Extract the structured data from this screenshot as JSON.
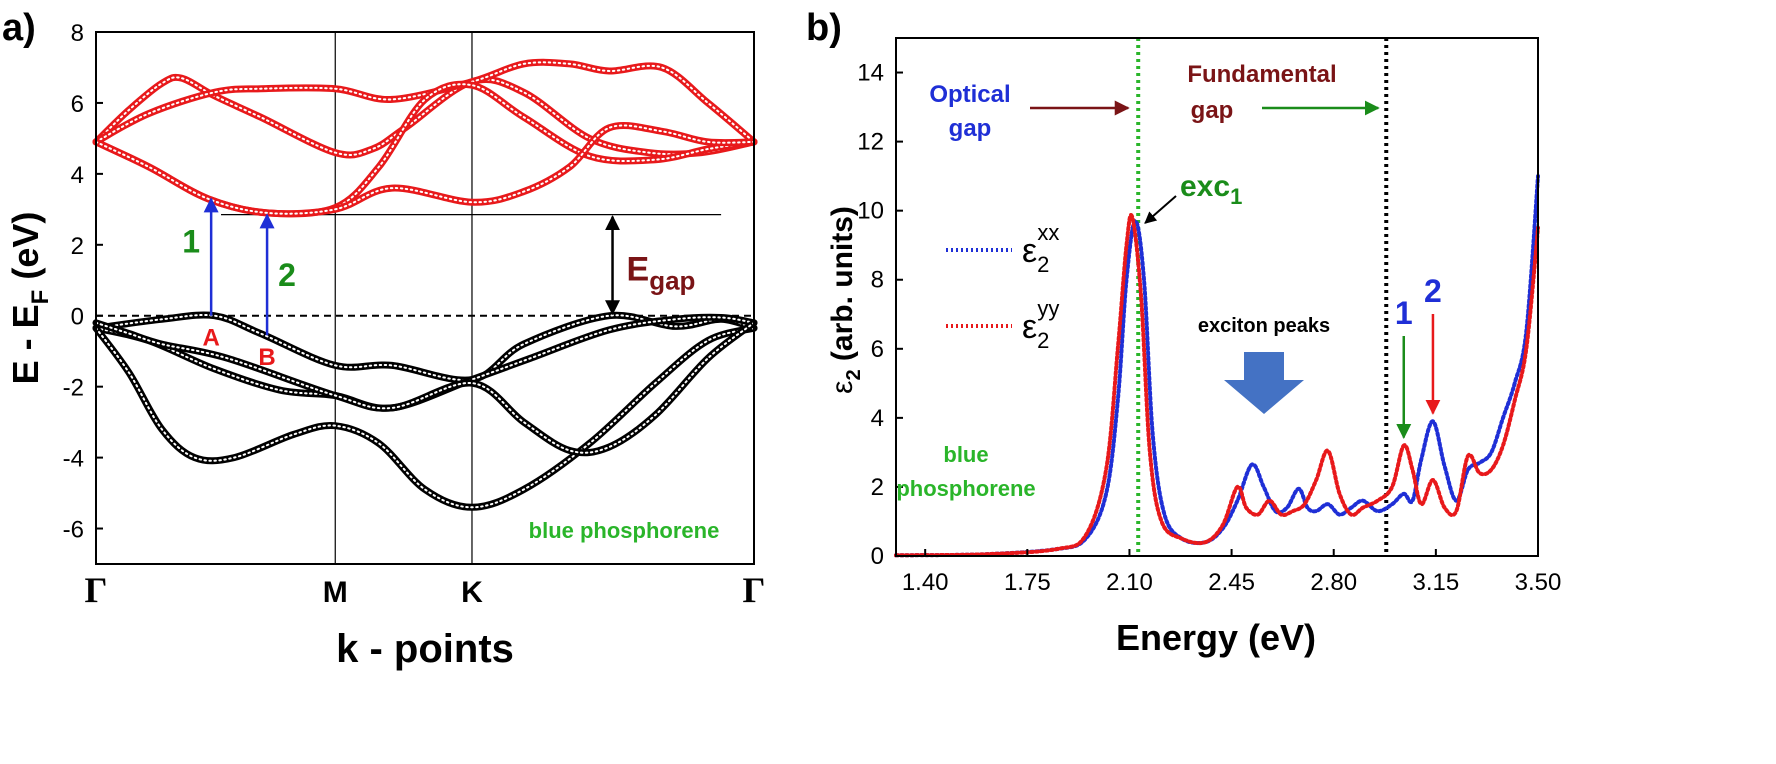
{
  "colors": {
    "conduction": "#e8191b",
    "valence": "#000000",
    "blue": "#1f2fd6",
    "green": "#1a8c1a",
    "darkred": "#7a1416",
    "annot_green": "#2ab52a",
    "arrow_fill": "#4472c4"
  },
  "chart_data": [
    {
      "panel_label": "a)",
      "type": "line",
      "title": "",
      "xlabel": "k - points",
      "ylabel": "E - E",
      "ylabel_sub": "F",
      "ylabel_unit": " (eV)",
      "ylim": [
        -7,
        8
      ],
      "yticks": [
        "8",
        "6",
        "4",
        "2",
        "0",
        "-2",
        "-4",
        "-6"
      ],
      "kpoints": [
        {
          "label": "Γ",
          "pos": 0
        },
        {
          "label": "M",
          "pos": 0.3636
        },
        {
          "label": "K",
          "pos": 0.5714
        },
        {
          "label": "Γ",
          "pos": 1.0
        }
      ],
      "series": [
        {
          "name": "conduction-band-1",
          "band": "conduction",
          "x": [
            0,
            0.05,
            0.1,
            0.13,
            0.18,
            0.25,
            0.3636,
            0.42,
            0.47,
            0.5714,
            0.65,
            0.75,
            0.84,
            0.92,
            1.0
          ],
          "y": [
            4.9,
            5.8,
            6.55,
            6.7,
            6.2,
            5.6,
            4.6,
            4.7,
            5.3,
            6.6,
            6.3,
            5.0,
            4.6,
            4.6,
            4.9
          ]
        },
        {
          "name": "conduction-band-2",
          "band": "conduction",
          "x": [
            0,
            0.08,
            0.18,
            0.25,
            0.3636,
            0.45,
            0.5714,
            0.65,
            0.72,
            0.78,
            0.86,
            0.93,
            1.0
          ],
          "y": [
            4.9,
            5.7,
            6.3,
            6.4,
            6.4,
            6.1,
            6.6,
            7.1,
            7.1,
            6.9,
            7.0,
            6.0,
            4.9
          ]
        },
        {
          "name": "conduction-band-3",
          "band": "conduction",
          "x": [
            0,
            0.08,
            0.17,
            0.26,
            0.3636,
            0.43,
            0.5,
            0.5714,
            0.65,
            0.75,
            0.85,
            0.93,
            1.0
          ],
          "y": [
            4.9,
            4.2,
            3.3,
            2.9,
            3.05,
            4.2,
            6.1,
            6.5,
            5.6,
            4.5,
            4.4,
            4.7,
            4.9
          ]
        },
        {
          "name": "conduction-band-4",
          "band": "conduction",
          "x": [
            0,
            0.08,
            0.17,
            0.26,
            0.3636,
            0.45,
            0.5714,
            0.65,
            0.72,
            0.78,
            0.86,
            0.93,
            1.0
          ],
          "y": [
            4.9,
            4.2,
            3.3,
            2.9,
            3.0,
            3.6,
            3.2,
            3.5,
            4.2,
            5.3,
            5.2,
            4.9,
            4.9
          ]
        },
        {
          "name": "valence-band-1",
          "band": "valence",
          "x": [
            0,
            0.1,
            0.18,
            0.25,
            0.3636,
            0.45,
            0.5714,
            0.65,
            0.78,
            0.88,
            0.95,
            1.0
          ],
          "y": [
            -0.35,
            -0.1,
            0.0,
            -0.5,
            -1.4,
            -1.4,
            -1.8,
            -0.8,
            0.0,
            -0.3,
            -0.1,
            -0.35
          ]
        },
        {
          "name": "valence-band-2",
          "band": "valence",
          "x": [
            0,
            0.08,
            0.18,
            0.28,
            0.3636,
            0.45,
            0.5714,
            0.66,
            0.78,
            0.88,
            0.95,
            1.0
          ],
          "y": [
            -0.35,
            -0.7,
            -1.5,
            -2.1,
            -2.25,
            -2.6,
            -1.8,
            -1.2,
            -0.4,
            -0.1,
            -0.05,
            -0.2
          ]
        },
        {
          "name": "valence-band-3",
          "band": "valence",
          "x": [
            0,
            0.05,
            0.1,
            0.15,
            0.21,
            0.3,
            0.3636,
            0.43,
            0.5,
            0.5714,
            0.65,
            0.75,
            0.85,
            0.93,
            1.0
          ],
          "y": [
            -0.35,
            -1.6,
            -3.2,
            -4.0,
            -4.0,
            -3.35,
            -3.1,
            -3.6,
            -4.9,
            -5.4,
            -4.9,
            -3.6,
            -1.9,
            -0.7,
            -0.35
          ]
        },
        {
          "name": "valence-band-4",
          "band": "valence",
          "x": [
            0,
            0.05,
            0.1,
            0.2,
            0.3636,
            0.45,
            0.5714,
            0.65,
            0.72,
            0.78,
            0.85,
            0.93,
            1.0
          ],
          "y": [
            -0.2,
            -0.5,
            -0.8,
            -1.2,
            -2.25,
            -2.6,
            -1.9,
            -3.0,
            -3.8,
            -3.7,
            -2.8,
            -1.2,
            -0.2
          ]
        }
      ],
      "fermi_level": 0,
      "cbm_line": {
        "y": 2.85,
        "x_start": 0.19,
        "x_end": 0.95
      },
      "transitions": [
        {
          "label": "1",
          "point": "A",
          "x": 0.175,
          "y_from": 0.0,
          "y_to": 3.35
        },
        {
          "label": "2",
          "point": "B",
          "x": 0.26,
          "y_from": -0.55,
          "y_to": 2.9
        }
      ],
      "egap": {
        "label": "E",
        "sub": "gap",
        "x": 0.785,
        "y_from": 0.0,
        "y_to": 2.85
      },
      "annotation": "blue phosphorene"
    },
    {
      "panel_label": "b)",
      "type": "scatter",
      "title": "",
      "xlabel": "Energy (eV)",
      "ylabel_main": "ε",
      "ylabel_sub": "2",
      "ylabel_unit": " (arb. units)",
      "xlim": [
        1.3,
        3.5
      ],
      "ylim": [
        0,
        15
      ],
      "xticks": [
        "1.40",
        "1.75",
        "2.10",
        "2.45",
        "2.80",
        "3.15",
        "3.50"
      ],
      "yticks": [
        "0",
        "2",
        "4",
        "6",
        "8",
        "10",
        "12",
        "14"
      ],
      "series": [
        {
          "name": "eps2_xx",
          "legend_main": "ε",
          "legend_sub": "2",
          "legend_sup": "xx",
          "x": [
            1.3,
            1.6,
            1.85,
            1.95,
            2.02,
            2.06,
            2.09,
            2.12,
            2.15,
            2.18,
            2.22,
            2.28,
            2.36,
            2.42,
            2.47,
            2.52,
            2.56,
            2.6,
            2.64,
            2.68,
            2.71,
            2.74,
            2.78,
            2.82,
            2.86,
            2.9,
            2.95,
            3.0,
            3.04,
            3.07,
            3.1,
            3.14,
            3.18,
            3.22,
            3.26,
            3.3,
            3.34,
            3.38,
            3.42,
            3.46,
            3.5
          ],
          "y": [
            0.02,
            0.05,
            0.2,
            0.5,
            1.8,
            4.5,
            8.0,
            9.7,
            8.0,
            3.5,
            1.2,
            0.5,
            0.4,
            0.8,
            1.6,
            2.65,
            2.0,
            1.3,
            1.4,
            1.95,
            1.4,
            1.3,
            1.5,
            1.2,
            1.4,
            1.6,
            1.3,
            1.5,
            1.8,
            1.6,
            2.8,
            3.9,
            2.6,
            1.6,
            2.5,
            2.7,
            3.0,
            4.0,
            5.0,
            6.5,
            11.0
          ]
        },
        {
          "name": "eps2_yy",
          "legend_main": "ε",
          "legend_sub": "2",
          "legend_sup": "yy",
          "x": [
            1.3,
            1.6,
            1.85,
            1.95,
            2.02,
            2.06,
            2.09,
            2.11,
            2.14,
            2.17,
            2.21,
            2.28,
            2.36,
            2.42,
            2.47,
            2.5,
            2.54,
            2.58,
            2.62,
            2.66,
            2.7,
            2.74,
            2.78,
            2.82,
            2.86,
            2.9,
            2.95,
            3.0,
            3.04,
            3.07,
            3.1,
            3.14,
            3.18,
            3.22,
            3.26,
            3.3,
            3.34,
            3.38,
            3.42,
            3.46,
            3.5
          ],
          "y": [
            0.02,
            0.05,
            0.2,
            0.6,
            2.5,
            6.0,
            9.0,
            9.8,
            7.5,
            3.0,
            1.0,
            0.5,
            0.4,
            0.9,
            2.0,
            1.4,
            1.2,
            1.6,
            1.2,
            1.3,
            1.5,
            2.2,
            3.05,
            1.8,
            1.2,
            1.4,
            1.6,
            2.0,
            3.2,
            2.5,
            1.5,
            2.2,
            1.4,
            1.3,
            2.9,
            2.4,
            2.5,
            3.2,
            4.5,
            6.0,
            9.5
          ]
        }
      ],
      "vlines": [
        {
          "name": "optical-gap-line",
          "x": 2.13,
          "style": "green-dotted"
        },
        {
          "name": "fundamental-gap-line",
          "x": 2.98,
          "style": "black-dotted"
        }
      ],
      "optical_gap_label": [
        "Optical",
        "gap"
      ],
      "fundamental_gap_label": [
        "Fundamental",
        "gap"
      ],
      "exciton_label": "exc",
      "exciton_sub": "1",
      "exciton_peaks_label": "exciton peaks",
      "peak_markers": [
        {
          "label": "1",
          "x": 3.04,
          "y": 3.2
        },
        {
          "label": "2",
          "x": 3.14,
          "y": 3.9
        }
      ],
      "annotation": [
        "blue",
        "phosphorene"
      ]
    }
  ]
}
